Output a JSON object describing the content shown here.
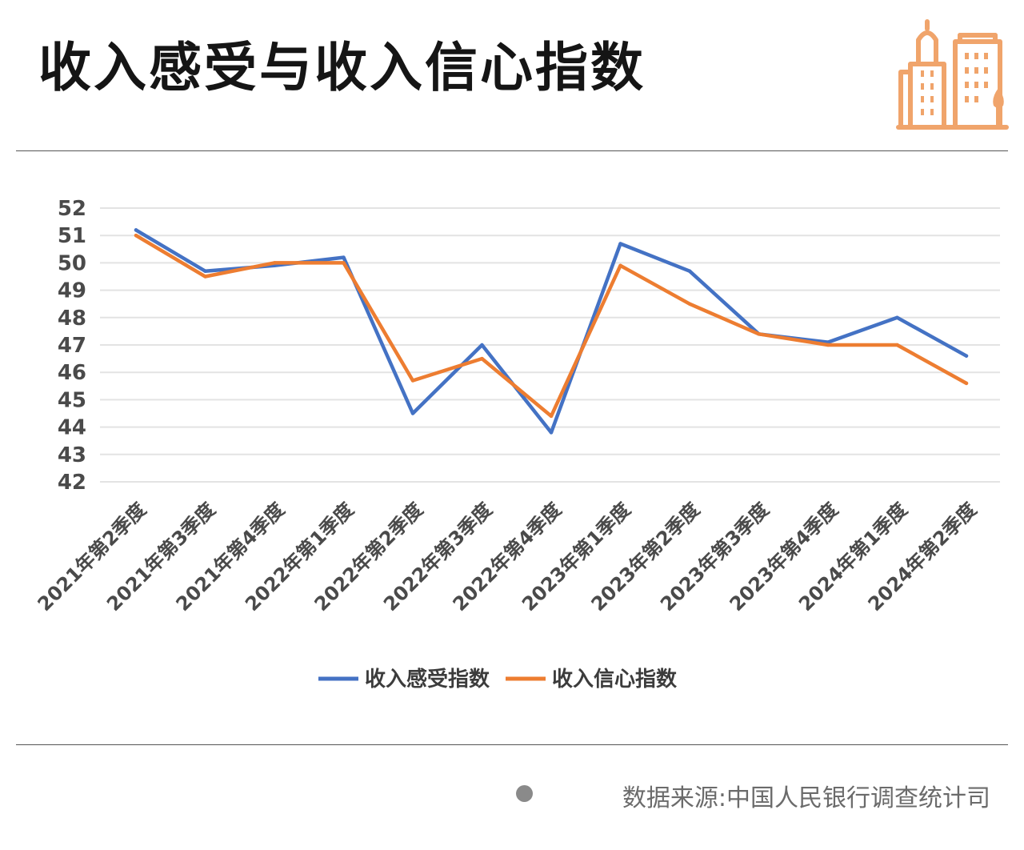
{
  "header": {
    "title": "收入感受与收入信心指数",
    "logo_icon": "city-buildings-icon"
  },
  "footer": {
    "source": "数据来源:中国人民银行调查统计司",
    "bullet_icon": "gray-dot-icon"
  },
  "colors": {
    "series1": "#4472C4",
    "series2": "#ED7D31",
    "grid": "#e3e3e3",
    "logo": "#F0A46B"
  },
  "chart_data": {
    "type": "line",
    "title": "收入感受与收入信心指数",
    "categories": [
      "2021年第2季度",
      "2021年第3季度",
      "2021年第4季度",
      "2022年第1季度",
      "2022年第2季度",
      "2022年第3季度",
      "2022年第4季度",
      "2023年第1季度",
      "2023年第2季度",
      "2023年第3季度",
      "2023年第4季度",
      "2024年第1季度",
      "2024年第2季度"
    ],
    "series": [
      {
        "name": "收入感受指数",
        "color": "#4472C4",
        "values": [
          51.2,
          49.7,
          49.9,
          50.2,
          44.5,
          47.0,
          43.8,
          50.7,
          49.7,
          47.4,
          47.1,
          48.0,
          46.6
        ]
      },
      {
        "name": "收入信心指数",
        "color": "#ED7D31",
        "values": [
          51.0,
          49.5,
          50.0,
          50.0,
          45.7,
          46.5,
          44.4,
          49.9,
          48.5,
          47.4,
          47.0,
          47.0,
          45.6
        ]
      }
    ],
    "ylim": [
      42,
      52
    ],
    "yticks": [
      42,
      43,
      44,
      45,
      46,
      47,
      48,
      49,
      50,
      51,
      52
    ],
    "grid": true,
    "legend": "bottom-center",
    "xlabel": "",
    "ylabel": ""
  }
}
